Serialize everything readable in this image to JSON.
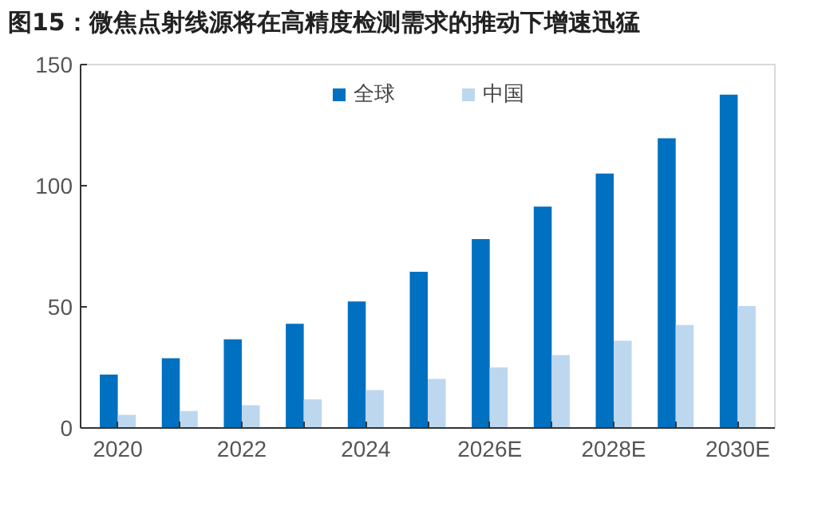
{
  "chart_data": {
    "type": "bar",
    "title": "图15：微焦点射线源将在高精度检测需求的推动下增速迅猛",
    "categories": [
      "2020",
      null,
      "2022",
      null,
      "2024",
      null,
      "2026E",
      null,
      "2028E",
      null,
      "2030E"
    ],
    "series": [
      {
        "name": "全球",
        "color": "#0070c0",
        "values": [
          22,
          28.8,
          36.6,
          43,
          52.2,
          64.5,
          78,
          91.4,
          105,
          119.6,
          137.6
        ]
      },
      {
        "name": "中国",
        "color": "#bdd7ee",
        "values": [
          5.4,
          7,
          9.4,
          11.8,
          15.6,
          20.2,
          25,
          30.1,
          36,
          42.5,
          50.3
        ]
      }
    ],
    "ylim": [
      0,
      150
    ],
    "yticks": [
      0,
      50,
      100,
      150
    ],
    "grid": false,
    "legend": "top"
  }
}
